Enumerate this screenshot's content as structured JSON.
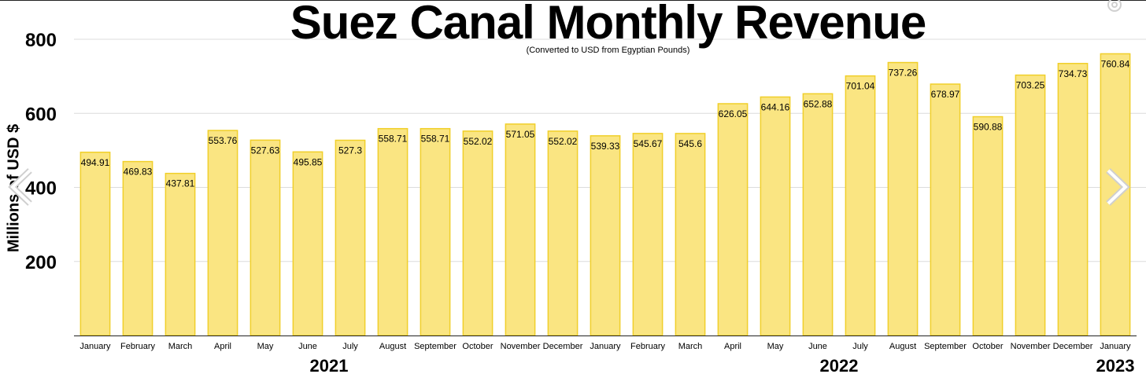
{
  "chart_data": {
    "type": "bar",
    "title": "Suez Canal Monthly Revenue",
    "subtitle": "(Converted to USD from Egyptian Pounds)",
    "ylabel": "Millions of USD $",
    "xlabel": "",
    "ylim": [
      0,
      800
    ],
    "yticks": [
      200,
      400,
      600,
      800
    ],
    "grid": true,
    "bar_color": "#fae582",
    "bar_edge_color": "#f0cf2a",
    "categories": [
      "January",
      "February",
      "March",
      "April",
      "May",
      "June",
      "July",
      "August",
      "September",
      "October",
      "November",
      "December",
      "January",
      "February",
      "March",
      "April",
      "May",
      "June",
      "July",
      "August",
      "September",
      "October",
      "November",
      "December",
      "January"
    ],
    "values": [
      494.91,
      469.83,
      437.81,
      553.76,
      527.63,
      495.85,
      527.3,
      558.71,
      558.71,
      552.02,
      571.05,
      552.02,
      539.33,
      545.67,
      545.6,
      626.05,
      644.16,
      652.88,
      701.04,
      737.26,
      678.97,
      590.88,
      703.25,
      734.73,
      760.84
    ],
    "value_labels": [
      "494.91",
      "469.83",
      "437.81",
      "553.76",
      "527.63",
      "495.85",
      "527.3",
      "558.71",
      "558.71",
      "552.02",
      "571.05",
      "552.02",
      "539.33",
      "545.67",
      "545.6",
      "626.05",
      "644.16",
      "652.88",
      "701.04",
      "737.26",
      "678.97",
      "590.88",
      "703.25",
      "734.73",
      "760.84"
    ],
    "year_groups": [
      {
        "label": "2021",
        "start": 0,
        "end": 11
      },
      {
        "label": "2022",
        "start": 12,
        "end": 23
      },
      {
        "label": "2023",
        "start": 24,
        "end": 24
      }
    ]
  },
  "controls": {
    "prev_icon": "chevron-left-icon",
    "next_icon": "chevron-right-icon",
    "settings_icon": "gear-icon"
  }
}
